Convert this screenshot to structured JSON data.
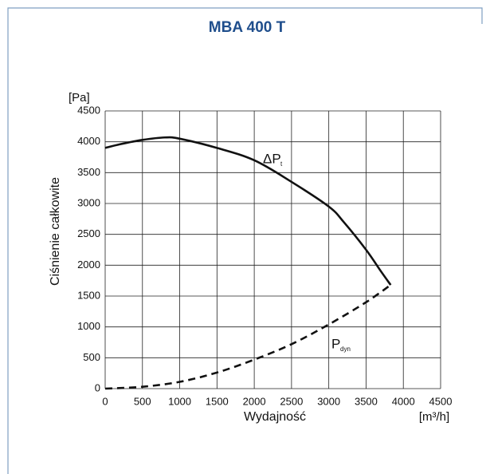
{
  "chart_data": {
    "type": "line",
    "title": "MBA 400 T",
    "y_unit": "[Pa]",
    "y_label": "Ciśnienie całkowite",
    "x_label": "Wydajność",
    "x_unit": "[m³/h]",
    "xlim": [
      0,
      4500
    ],
    "xticks": [
      0,
      500,
      1000,
      1500,
      2000,
      2500,
      3000,
      3500,
      4000,
      4500
    ],
    "ylim": [
      0,
      4500
    ],
    "yticks": [
      0,
      500,
      1000,
      1500,
      2000,
      2500,
      3000,
      3500,
      4000,
      4500
    ],
    "grid": true,
    "series": [
      {
        "label": "ΔP",
        "label_sub": "t",
        "color": "#111111",
        "dash": false,
        "x": [
          0,
          200,
          500,
          800,
          1000,
          1500,
          2000,
          2500,
          3000,
          3200,
          3500,
          3700,
          3830
        ],
        "values": [
          3900,
          3960,
          4030,
          4070,
          4050,
          3900,
          3700,
          3350,
          2950,
          2700,
          2250,
          1900,
          1680
        ]
      },
      {
        "label": "P",
        "label_sub": "dyn",
        "color": "#111111",
        "dash": true,
        "x": [
          0,
          500,
          1000,
          1500,
          2000,
          2500,
          3000,
          3500,
          3830
        ],
        "values": [
          0,
          30,
          110,
          260,
          470,
          720,
          1040,
          1400,
          1680
        ]
      }
    ]
  }
}
